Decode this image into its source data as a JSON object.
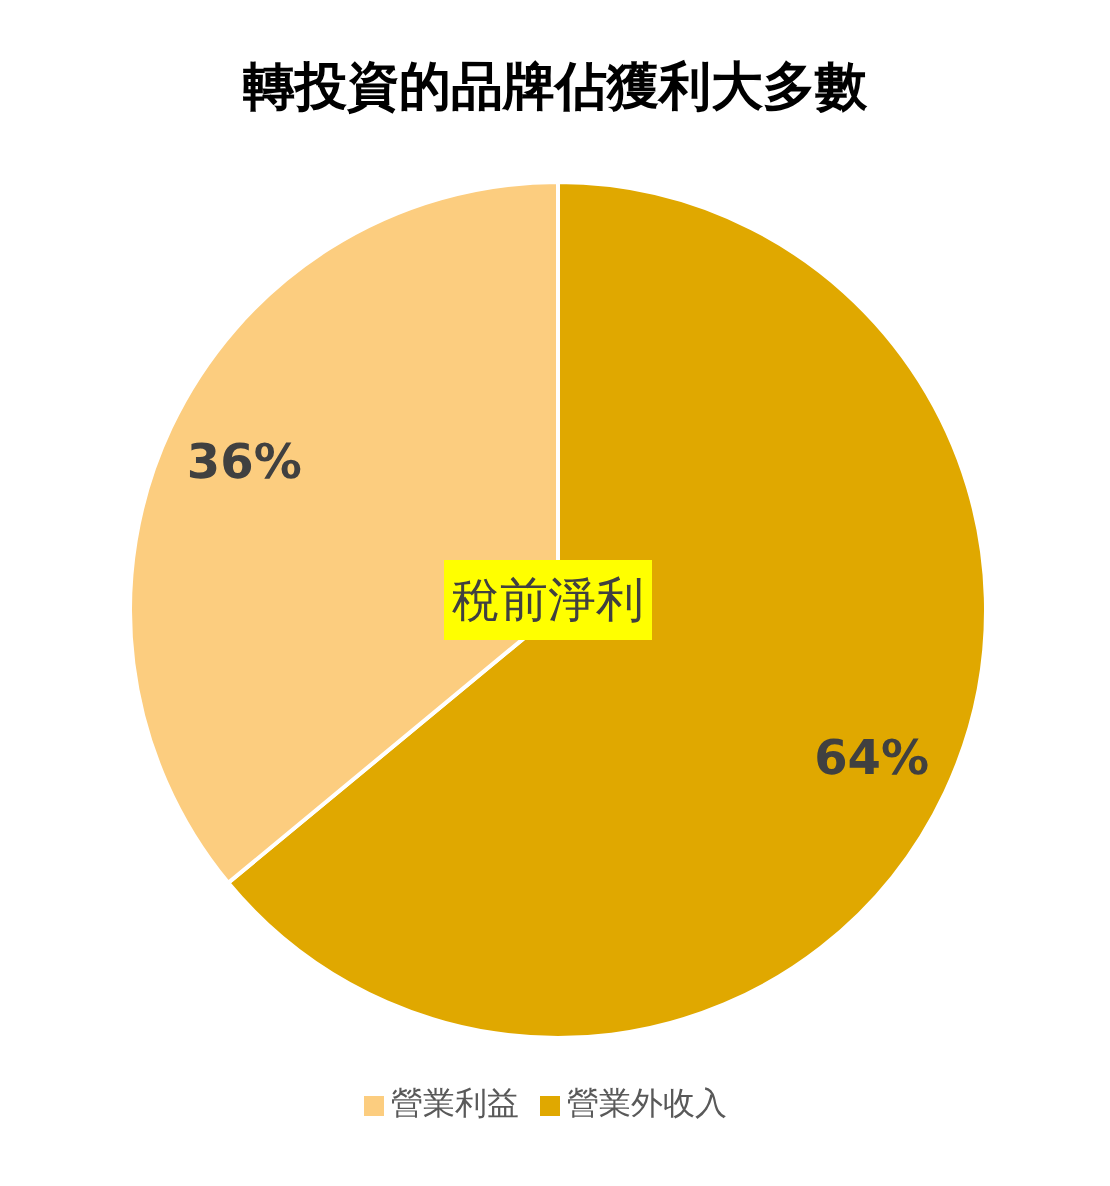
{
  "chart_data": {
    "type": "pie",
    "title": "轉投資的品牌佔獲利大多數",
    "categories": [
      "營業外收入",
      "營業利益"
    ],
    "values": [
      64,
      36
    ],
    "colors": [
      "#e0a800",
      "#fccd7f"
    ],
    "value_labels": [
      "64%",
      "36%"
    ],
    "annotations": [
      "稅前淨利"
    ],
    "legend": "bottom"
  }
}
